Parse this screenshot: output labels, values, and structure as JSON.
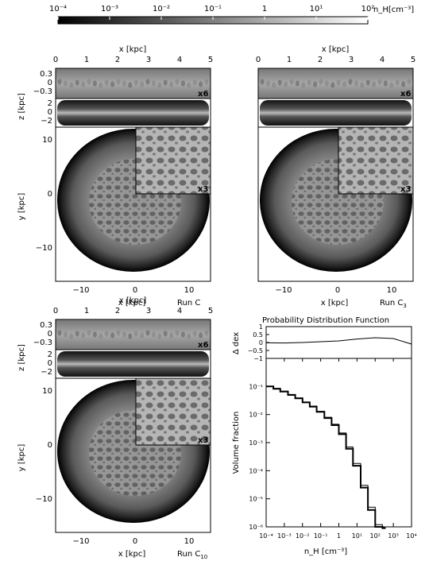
{
  "colorbar": {
    "ticks": [
      "10⁻⁴",
      "10⁻³",
      "10⁻²",
      "10⁻¹",
      "1",
      "10¹",
      "10²"
    ],
    "label": "n_H[cm⁻³]"
  },
  "panels": [
    {
      "top_xlabel": "x [kpc]",
      "top_ticks": [
        "0",
        "1",
        "2",
        "3",
        "4",
        "5"
      ],
      "inset_z_ticks": [
        "0.3",
        "0",
        "−0.3"
      ],
      "edge_z_ticks": [
        "2",
        "0",
        "−2"
      ],
      "z_label": "z [kpc]",
      "face_y_ticks": [
        "10",
        "0",
        "−10"
      ],
      "y_label": "y [kpc]",
      "bottom_x_ticks": [
        "−10",
        "0",
        "10"
      ],
      "bottom_xlabel": "x [kpc]",
      "zoom_edge": "x6",
      "zoom_face": "x3",
      "run_label": "Run C",
      "run_sub": ""
    },
    {
      "top_xlabel": "x [kpc]",
      "top_ticks": [
        "0",
        "1",
        "2",
        "3",
        "4",
        "5"
      ],
      "inset_z_ticks": [],
      "edge_z_ticks": [],
      "z_label": "",
      "face_y_ticks": [],
      "y_label": "",
      "bottom_x_ticks": [
        "−10",
        "0",
        "10"
      ],
      "bottom_xlabel": "x [kpc]",
      "zoom_edge": "x6",
      "zoom_face": "x3",
      "run_label": "Run C",
      "run_sub": "3"
    },
    {
      "top_xlabel": "x [kpc]",
      "top_ticks": [
        "0",
        "1",
        "2",
        "3",
        "4",
        "5"
      ],
      "inset_z_ticks": [
        "0.3",
        "0",
        "−0.3"
      ],
      "edge_z_ticks": [
        "2",
        "0",
        "−2"
      ],
      "z_label": "z [kpc]",
      "face_y_ticks": [
        "10",
        "0",
        "−10"
      ],
      "y_label": "y [kpc]",
      "bottom_x_ticks": [
        "−10",
        "0",
        "10"
      ],
      "bottom_xlabel": "x [kpc]",
      "zoom_edge": "x6",
      "zoom_face": "x3",
      "run_label": "Run C",
      "run_sub": "10"
    }
  ],
  "chart_data": {
    "type": "line",
    "title": "Probability Distribution Function",
    "xlabel": "n_H [cm⁻³]",
    "x_scale": "log",
    "xlim": [
      0.0001,
      10000
    ],
    "x_tick_labels": [
      "10⁻⁴",
      "10⁻³",
      "10⁻²",
      "10⁻¹",
      "1",
      "10¹",
      "10²",
      "10³",
      "10⁴"
    ],
    "top_panel": {
      "ylabel": "Δ dex",
      "ylim": [
        -1,
        1
      ],
      "y_tick_labels": [
        "1",
        "0.5",
        "0",
        "−0.5",
        "−1"
      ],
      "series": [
        {
          "x": [
            0.0001,
            0.001,
            0.01,
            0.1,
            1,
            10,
            100,
            1000,
            10000
          ],
          "values": [
            -0.02,
            -0.03,
            0.0,
            0.05,
            0.1,
            0.22,
            0.3,
            0.25,
            -0.1
          ]
        }
      ]
    },
    "bottom_panel": {
      "ylabel": "Volume fraction",
      "y_scale": "log",
      "ylim": [
        1e-06,
        1
      ],
      "y_tick_labels": [
        "10⁻¹",
        "10⁻²",
        "10⁻³",
        "10⁻⁴",
        "10⁻⁵",
        "10⁻⁶"
      ],
      "series": [
        {
          "style": "thin",
          "x": [
            0.0001,
            0.00025,
            0.0006,
            0.0016,
            0.004,
            0.01,
            0.025,
            0.06,
            0.16,
            0.4,
            1,
            2.5,
            6,
            16,
            40,
            100,
            250
          ],
          "values": [
            0.1,
            0.085,
            0.068,
            0.052,
            0.039,
            0.028,
            0.02,
            0.013,
            0.008,
            0.0045,
            0.0022,
            0.0007,
            0.00018,
            3e-05,
            5e-06,
            1.2e-06,
            9e-07
          ]
        },
        {
          "style": "thick",
          "x": [
            0.0001,
            0.00025,
            0.0006,
            0.0016,
            0.004,
            0.01,
            0.025,
            0.06,
            0.16,
            0.4,
            1,
            2.5,
            6,
            16,
            40,
            100,
            250
          ],
          "values": [
            0.1,
            0.083,
            0.066,
            0.05,
            0.038,
            0.027,
            0.019,
            0.0125,
            0.0075,
            0.0042,
            0.002,
            0.0006,
            0.00015,
            2.5e-05,
            4e-06,
            1e-06,
            9e-07
          ]
        }
      ]
    }
  }
}
